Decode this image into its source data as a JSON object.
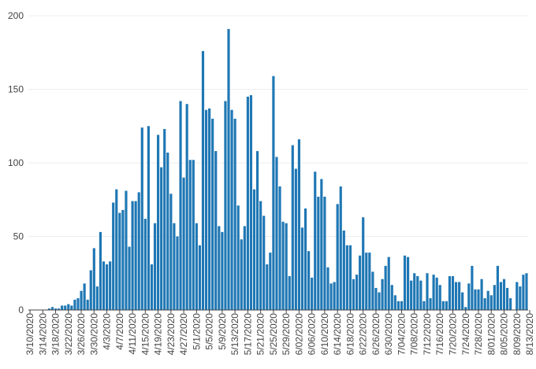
{
  "chart_data": {
    "type": "bar",
    "title": "",
    "xlabel": "",
    "ylabel": "",
    "ylim": [
      0,
      200
    ],
    "yticks": [
      0,
      50,
      100,
      150,
      200
    ],
    "grid": true,
    "colors": {
      "bar": "#1f77b4",
      "grid": "#eeeeee",
      "text": "#444444"
    },
    "start_date": "3/10/2020",
    "x_tick_labels": [
      "3/10/2020",
      "3/14/2020",
      "3/18/2020",
      "3/22/2020",
      "3/26/2020",
      "3/30/2020",
      "4/3/2020",
      "4/7/2020",
      "4/11/2020",
      "4/15/2020",
      "4/19/2020",
      "4/23/2020",
      "4/27/2020",
      "5/1/2020",
      "5/5/2020",
      "5/9/2020",
      "5/13/2020",
      "5/17/2020",
      "5/21/2020",
      "5/25/2020",
      "5/29/2020",
      "6/02/2020",
      "6/06/2020",
      "6/10/2020",
      "6/14/2020",
      "6/18/2020",
      "6/22/2020",
      "6/26/2020",
      "6/30/2020",
      "7/04/2020",
      "7/08/2020",
      "7/12/2020",
      "7/16/2020",
      "7/20/2020",
      "7/24/2020",
      "7/28/2020",
      "8/01/2020",
      "8/05/2020",
      "8/09/2020",
      "8/13/2020"
    ],
    "values": [
      0,
      0,
      0,
      0,
      0,
      0,
      1,
      2,
      1,
      1,
      3,
      3,
      4,
      3,
      7,
      8,
      13,
      18,
      7,
      27,
      42,
      16,
      53,
      33,
      31,
      33,
      73,
      82,
      66,
      68,
      81,
      43,
      74,
      74,
      80,
      124,
      62,
      125,
      31,
      59,
      119,
      97,
      123,
      107,
      79,
      59,
      50,
      142,
      90,
      140,
      102,
      102,
      59,
      44,
      176,
      136,
      137,
      130,
      108,
      57,
      53,
      142,
      191,
      136,
      130,
      71,
      48,
      57,
      145,
      146,
      82,
      108,
      74,
      64,
      31,
      39,
      159,
      104,
      84,
      60,
      59,
      23,
      112,
      96,
      116,
      56,
      69,
      40,
      22,
      94,
      77,
      89,
      77,
      29,
      18,
      19,
      72,
      84,
      54,
      44,
      44,
      21,
      24,
      37,
      63,
      39,
      39,
      26,
      15,
      12,
      21,
      30,
      36,
      17,
      10,
      6,
      6,
      37,
      36,
      20,
      25,
      23,
      20,
      6,
      25,
      8,
      24,
      22,
      17,
      6,
      6,
      23,
      23,
      19,
      19,
      12,
      2,
      18,
      30,
      14,
      14,
      21,
      8,
      13,
      10,
      17,
      30,
      19,
      21,
      15,
      8,
      0,
      19,
      16,
      24,
      25
    ]
  }
}
